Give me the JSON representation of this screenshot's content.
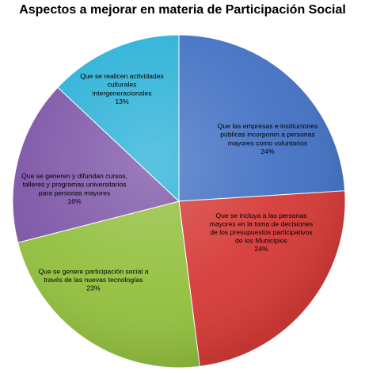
{
  "chart_data": {
    "type": "pie",
    "title": "Aspectos a mejorar en materia de Participación Social",
    "slices": [
      {
        "label_lines": [
          "Que las empresas e instituciones",
          "públicas incorporen a personas",
          "mayores como voluntarios"
        ],
        "percent_label": "24%",
        "value": 24,
        "color": "#4472C4"
      },
      {
        "label_lines": [
          "Que se incluya a las personas",
          "mayores en la toma de decisiones",
          "de los presupuestos participativos",
          "de los Municipios"
        ],
        "percent_label": "24%",
        "value": 24,
        "color": "#D63B38"
      },
      {
        "label_lines": [
          "Que se genere participación social a",
          "través de las nuevas tecnologías"
        ],
        "percent_label": "23%",
        "value": 23,
        "color": "#93C03F"
      },
      {
        "label_lines": [
          "Que se generen y difundan cursos,",
          "talleres y programas universitarios",
          "para personas mayores"
        ],
        "percent_label": "16%",
        "value": 16,
        "color": "#7E57A8"
      },
      {
        "label_lines": [
          "Que se realicen actividades",
          "culturales",
          "intergeneracionales"
        ],
        "percent_label": "13%",
        "value": 13,
        "color": "#2DB2D8"
      }
    ]
  }
}
